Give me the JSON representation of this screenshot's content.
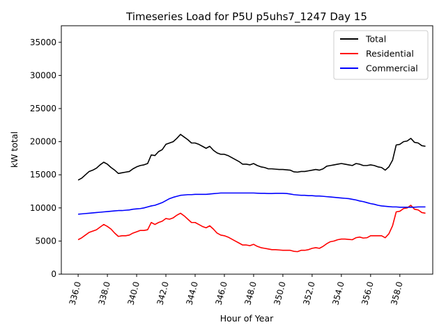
{
  "chart_data": {
    "type": "line",
    "title": "Timeseries Load for P5U p5uhs7_1247  Day 15",
    "xlabel": "Hour of Year",
    "ylabel": "kW total",
    "xlim": [
      334.85,
      360.25
    ],
    "ylim": [
      0,
      37500
    ],
    "xticks": [
      336,
      338,
      340,
      342,
      344,
      346,
      348,
      350,
      352,
      354,
      356,
      358
    ],
    "xtick_labels": [
      "336.0",
      "338.0",
      "340.0",
      "342.0",
      "344.0",
      "346.0",
      "348.0",
      "350.0",
      "352.0",
      "354.0",
      "356.0",
      "358.0"
    ],
    "yticks": [
      0,
      5000,
      10000,
      15000,
      20000,
      25000,
      30000,
      35000
    ],
    "ytick_labels": [
      "0",
      "5000",
      "10000",
      "15000",
      "20000",
      "25000",
      "30000",
      "35000"
    ],
    "legend_position": "top-right",
    "x_start": 336.0,
    "x_step": 0.25,
    "series": [
      {
        "name": "Total",
        "color": "#000000",
        "values": [
          14200,
          14500,
          15000,
          15500,
          15700,
          16000,
          16500,
          16900,
          16600,
          16100,
          15700,
          15200,
          15300,
          15400,
          15500,
          15900,
          16200,
          16400,
          16500,
          16700,
          18000,
          17900,
          18500,
          18800,
          19600,
          19800,
          20000,
          20500,
          21100,
          20700,
          20300,
          19800,
          19800,
          19600,
          19300,
          19000,
          19300,
          18700,
          18300,
          18100,
          18100,
          17900,
          17600,
          17300,
          17000,
          16600,
          16600,
          16500,
          16700,
          16400,
          16200,
          16100,
          15900,
          15900,
          15850,
          15800,
          15800,
          15750,
          15700,
          15450,
          15400,
          15500,
          15500,
          15600,
          15700,
          15800,
          15700,
          15900,
          16300,
          16400,
          16500,
          16600,
          16700,
          16600,
          16500,
          16400,
          16700,
          16600,
          16400,
          16400,
          16500,
          16400,
          16200,
          16100,
          15700,
          16200,
          17200,
          19500,
          19600,
          20000,
          20100,
          20500,
          19900,
          19800,
          19400,
          19300
        ]
      },
      {
        "name": "Residential",
        "color": "#ff0000",
        "values": [
          5200,
          5500,
          5900,
          6300,
          6500,
          6700,
          7100,
          7500,
          7200,
          6800,
          6200,
          5700,
          5800,
          5800,
          5900,
          6200,
          6400,
          6600,
          6600,
          6700,
          7800,
          7500,
          7800,
          8000,
          8400,
          8300,
          8500,
          8900,
          9200,
          8800,
          8300,
          7800,
          7800,
          7500,
          7200,
          7000,
          7300,
          6800,
          6200,
          5900,
          5800,
          5600,
          5300,
          5000,
          4700,
          4400,
          4400,
          4300,
          4500,
          4200,
          4000,
          3900,
          3800,
          3700,
          3700,
          3650,
          3600,
          3600,
          3600,
          3450,
          3400,
          3600,
          3600,
          3700,
          3900,
          4000,
          3900,
          4200,
          4600,
          4900,
          5000,
          5200,
          5300,
          5300,
          5250,
          5200,
          5500,
          5600,
          5450,
          5500,
          5800,
          5800,
          5800,
          5800,
          5500,
          6100,
          7300,
          9400,
          9500,
          9900,
          10000,
          10400,
          9800,
          9700,
          9300,
          9200
        ]
      },
      {
        "name": "Commercial",
        "color": "#0000ff",
        "values": [
          9050,
          9100,
          9150,
          9200,
          9250,
          9300,
          9350,
          9400,
          9450,
          9500,
          9550,
          9600,
          9600,
          9650,
          9700,
          9800,
          9850,
          9900,
          10000,
          10150,
          10300,
          10400,
          10600,
          10800,
          11100,
          11400,
          11600,
          11750,
          11900,
          11950,
          12000,
          12000,
          12050,
          12050,
          12050,
          12050,
          12100,
          12150,
          12200,
          12250,
          12250,
          12250,
          12250,
          12250,
          12250,
          12250,
          12250,
          12250,
          12250,
          12220,
          12200,
          12200,
          12180,
          12180,
          12200,
          12200,
          12200,
          12180,
          12100,
          12000,
          11950,
          11900,
          11900,
          11850,
          11850,
          11800,
          11800,
          11750,
          11700,
          11650,
          11600,
          11550,
          11500,
          11450,
          11400,
          11300,
          11200,
          11050,
          10950,
          10800,
          10650,
          10550,
          10400,
          10300,
          10250,
          10200,
          10150,
          10150,
          10100,
          10100,
          10100,
          10100,
          10100,
          10150,
          10150,
          10150
        ]
      }
    ]
  }
}
